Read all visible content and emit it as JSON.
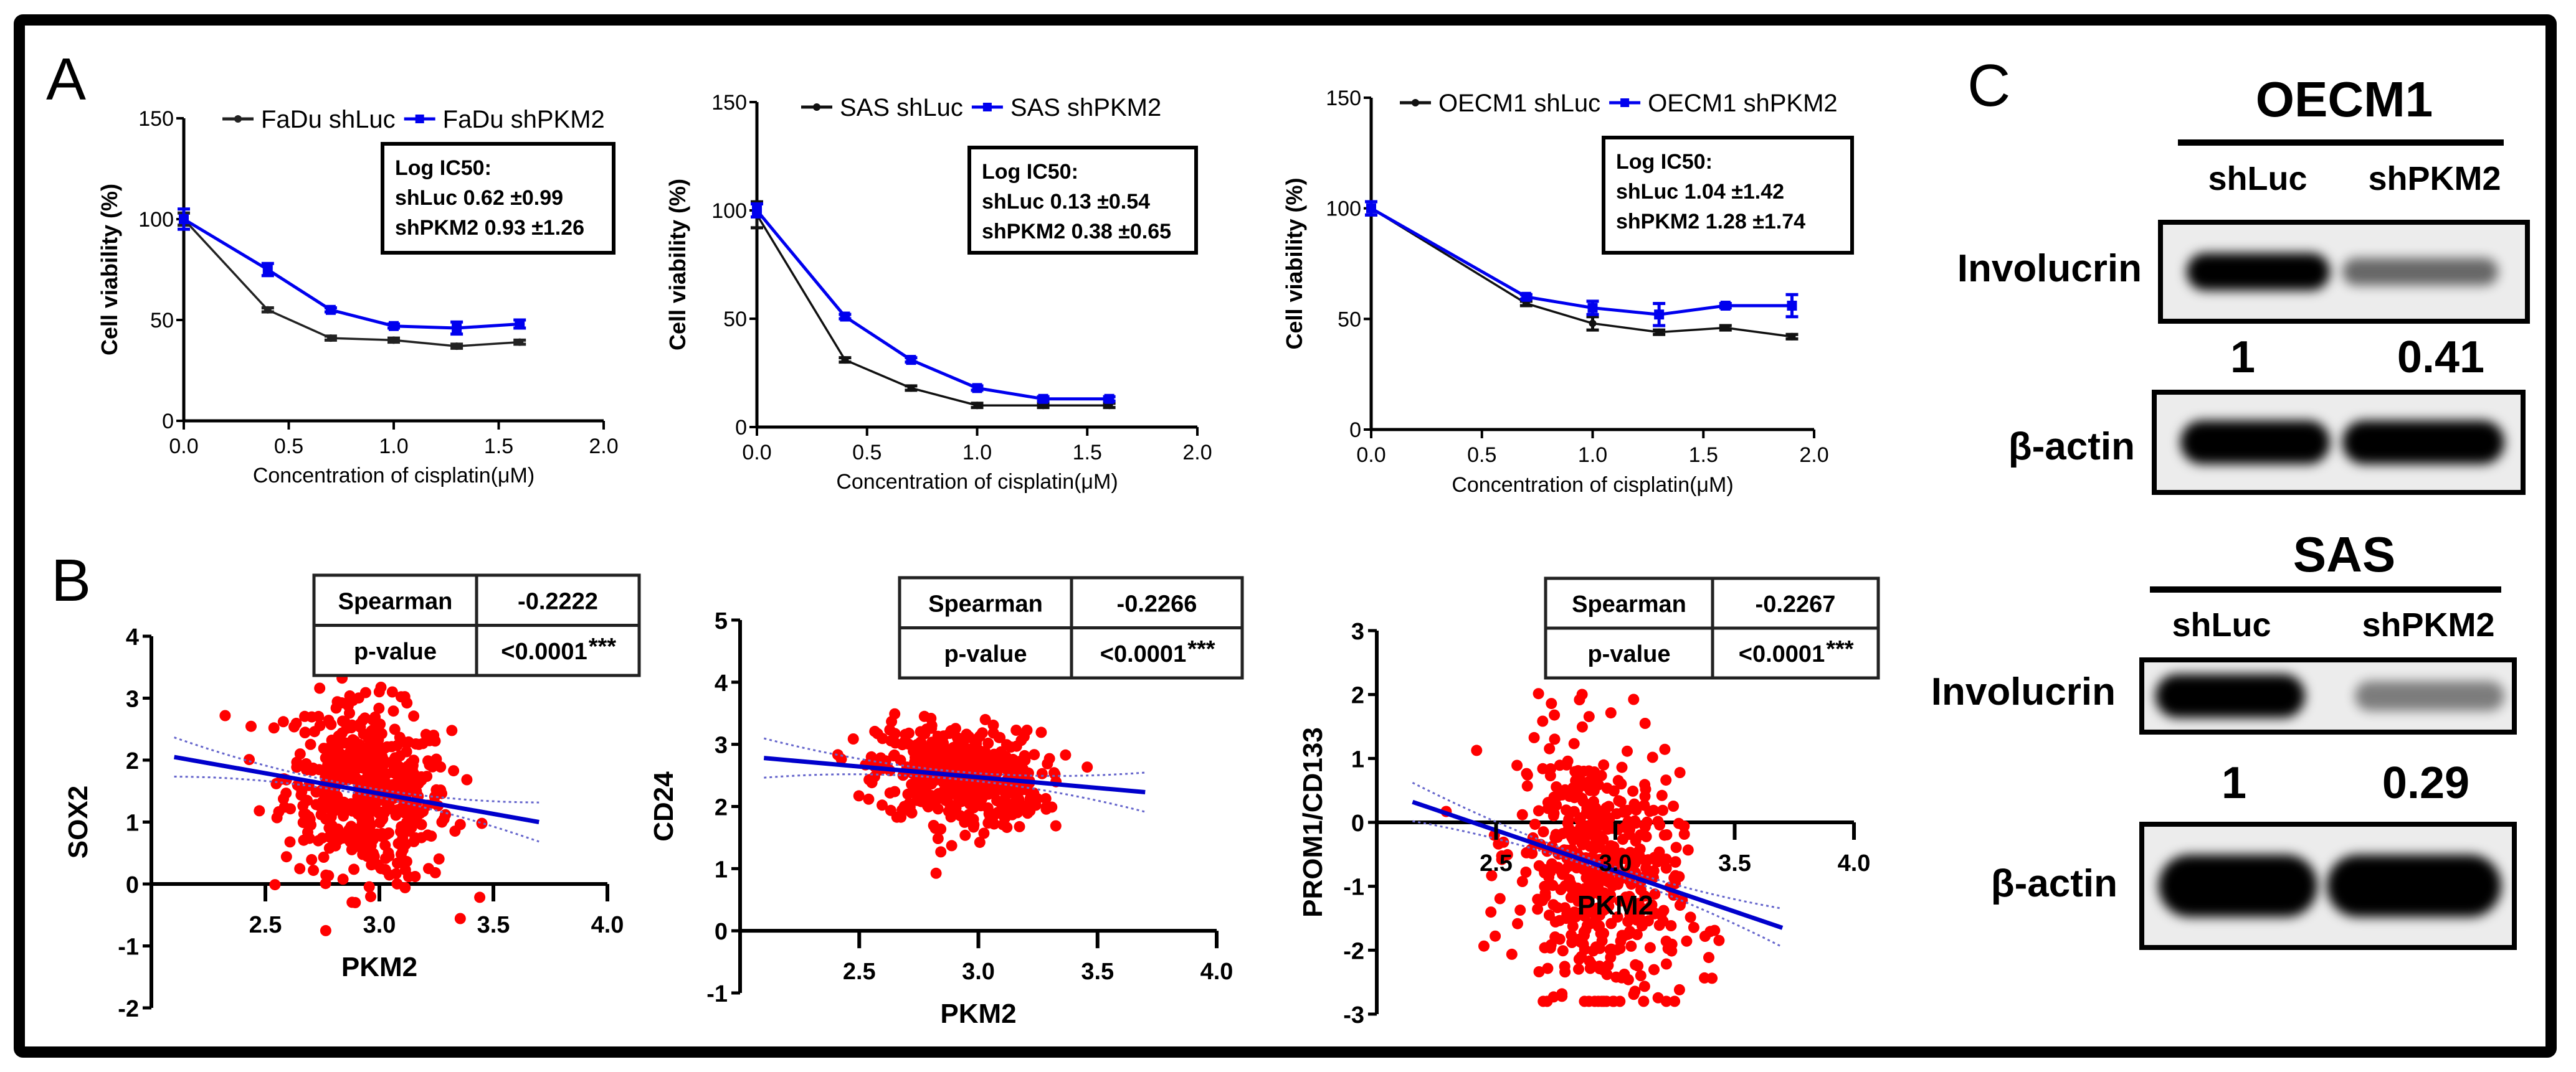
{
  "panels": {
    "a": "A",
    "b": "B",
    "c": "C"
  },
  "chart_data": [
    {
      "type": "line",
      "title": "FaDu",
      "xlabel": "Concentration of cisplatin(μM)",
      "ylabel": "Cell viability (%)",
      "xlim": [
        0,
        2.0
      ],
      "ylim": [
        0,
        150
      ],
      "xticks": [
        "0.0",
        "0.5",
        "1.0",
        "1.5",
        "2.0"
      ],
      "yticks": [
        "0",
        "50",
        "100",
        "150"
      ],
      "x": [
        0,
        0.4,
        0.7,
        1.0,
        1.3,
        1.6
      ],
      "series": [
        {
          "name": "FaDu shLuc",
          "color": "#222222",
          "values": [
            100,
            55,
            41,
            40,
            37,
            39
          ],
          "errors": [
            3,
            1,
            1,
            1,
            1,
            1
          ]
        },
        {
          "name": "FaDu shPKM2",
          "color": "#0000ee",
          "values": [
            100,
            75,
            55,
            47,
            46,
            48
          ],
          "errors": [
            5,
            3,
            1,
            1,
            3,
            2
          ]
        }
      ],
      "legend": "top",
      "annotation": [
        "Log IC50:",
        "shLuc 0.62 ±0.99",
        "shPKM2 0.93 ±1.26"
      ]
    },
    {
      "type": "line",
      "title": "SAS",
      "xlabel": "Concentration of cisplatin(μM)",
      "ylabel": "Cell viability (%)",
      "xlim": [
        0,
        2.0
      ],
      "ylim": [
        0,
        150
      ],
      "xticks": [
        "0.0",
        "0.5",
        "1.0",
        "1.5",
        "2.0"
      ],
      "yticks": [
        "0",
        "50",
        "100",
        "150"
      ],
      "x": [
        0,
        0.4,
        0.7,
        1.0,
        1.3,
        1.6
      ],
      "series": [
        {
          "name": "SAS shLuc",
          "color": "#111111",
          "values": [
            98,
            31,
            18,
            10,
            10,
            10
          ],
          "errors": [
            6,
            1,
            1,
            1,
            1,
            1
          ]
        },
        {
          "name": "SAS shPKM2",
          "color": "#0000ee",
          "values": [
            100,
            51,
            31,
            18,
            13,
            13
          ],
          "errors": [
            3,
            1,
            1,
            1,
            1,
            1
          ]
        }
      ],
      "legend": "top",
      "annotation": [
        "Log IC50:",
        "shLuc 0.13 ±0.54",
        "shPKM2 0.38 ±0.65"
      ]
    },
    {
      "type": "line",
      "title": "OECM1",
      "xlabel": "Concentration of cisplatin(μM)",
      "ylabel": "Cell viability (%)",
      "xlim": [
        0,
        2.0
      ],
      "ylim": [
        0,
        150
      ],
      "xticks": [
        "0.0",
        "0.5",
        "1.0",
        "1.5",
        "2.0"
      ],
      "yticks": [
        "0",
        "50",
        "100",
        "150"
      ],
      "x": [
        0,
        0.7,
        1.0,
        1.3,
        1.6,
        1.9
      ],
      "series": [
        {
          "name": "OECM1 shLuc",
          "color": "#111111",
          "values": [
            100,
            57,
            48,
            44,
            46,
            42
          ],
          "errors": [
            3,
            1,
            3,
            1,
            1,
            1
          ]
        },
        {
          "name": "OECM1 shPKM2",
          "color": "#0000ee",
          "values": [
            100,
            60,
            55,
            52,
            56,
            56
          ],
          "errors": [
            3,
            1,
            3,
            5,
            1,
            5
          ]
        }
      ],
      "legend": "top",
      "annotation": [
        "Log IC50:",
        "shLuc 1.04 ±1.42",
        "shPKM2 1.28 ±1.74"
      ]
    },
    {
      "type": "scatter",
      "xlabel": "PKM2",
      "ylabel": "SOX2",
      "xlim": [
        2.0,
        4.0
      ],
      "ylim": [
        -2,
        4
      ],
      "xticks": [
        "2.5",
        "3.0",
        "3.5",
        "4.0"
      ],
      "yticks": [
        "-2",
        "-1",
        "0",
        "1",
        "2",
        "3",
        "4"
      ],
      "point_color": "#ff0000",
      "line_color": "#0000cc",
      "regression": {
        "x": [
          2.1,
          3.7
        ],
        "y": [
          2.05,
          1.0
        ]
      },
      "points": {
        "n": 520,
        "center": [
          2.95,
          1.5
        ],
        "spread": [
          0.18,
          0.7
        ]
      },
      "table": {
        "rows": [
          [
            "Spearman",
            "-0.2222"
          ],
          [
            "p-value",
            "<0.0001"
          ]
        ],
        "stars": "***"
      }
    },
    {
      "type": "scatter",
      "xlabel": "PKM2",
      "ylabel": "CD24",
      "xlim": [
        2.0,
        4.0
      ],
      "ylim": [
        -1,
        5
      ],
      "xticks": [
        "2.5",
        "3.0",
        "3.5",
        "4.0"
      ],
      "yticks": [
        "-1",
        "0",
        "1",
        "2",
        "3",
        "4",
        "5"
      ],
      "point_color": "#ff0000",
      "line_color": "#0000cc",
      "regression": {
        "x": [
          2.1,
          3.7
        ],
        "y": [
          2.78,
          2.23
        ]
      },
      "points": {
        "n": 520,
        "center": [
          2.92,
          2.5
        ],
        "spread": [
          0.17,
          0.4
        ]
      },
      "table": {
        "rows": [
          [
            "Spearman",
            "-0.2266"
          ],
          [
            "p-value",
            "<0.0001"
          ]
        ],
        "stars": "***"
      }
    },
    {
      "type": "scatter",
      "xlabel": "PKM2",
      "ylabel": "PROM1/CD133",
      "xlim": [
        2.0,
        4.0
      ],
      "ylim": [
        -3,
        3
      ],
      "xticks": [
        "2.5",
        "3.0",
        "3.5",
        "4.0"
      ],
      "yticks": [
        "-3",
        "-2",
        "-1",
        "0",
        "1",
        "2",
        "3"
      ],
      "point_color": "#ff0000",
      "line_color": "#0000cc",
      "regression": {
        "x": [
          2.15,
          3.7
        ],
        "y": [
          0.32,
          -1.65
        ]
      },
      "points": {
        "n": 520,
        "center": [
          2.93,
          -0.8
        ],
        "spread": [
          0.17,
          1.0
        ]
      },
      "table": {
        "rows": [
          [
            "Spearman",
            "-0.2267"
          ],
          [
            "p-value",
            "<0.0001"
          ]
        ],
        "stars": "***"
      }
    }
  ],
  "western": [
    {
      "cell_line": "OECM1",
      "lanes": [
        "shLuc",
        "shPKM2"
      ],
      "rows": [
        {
          "label": "Involucrin",
          "intensity": [
            1,
            0.41
          ]
        },
        {
          "label": "β-actin",
          "intensity": [
            1,
            1
          ]
        }
      ],
      "quantification": [
        "1",
        "0.41"
      ]
    },
    {
      "cell_line": "SAS",
      "lanes": [
        "shLuc",
        "shPKM2"
      ],
      "rows": [
        {
          "label": "Involucrin",
          "intensity": [
            1,
            0.29
          ]
        },
        {
          "label": "β-actin",
          "intensity": [
            1,
            1
          ]
        }
      ],
      "quantification": [
        "1",
        "0.29"
      ]
    }
  ]
}
